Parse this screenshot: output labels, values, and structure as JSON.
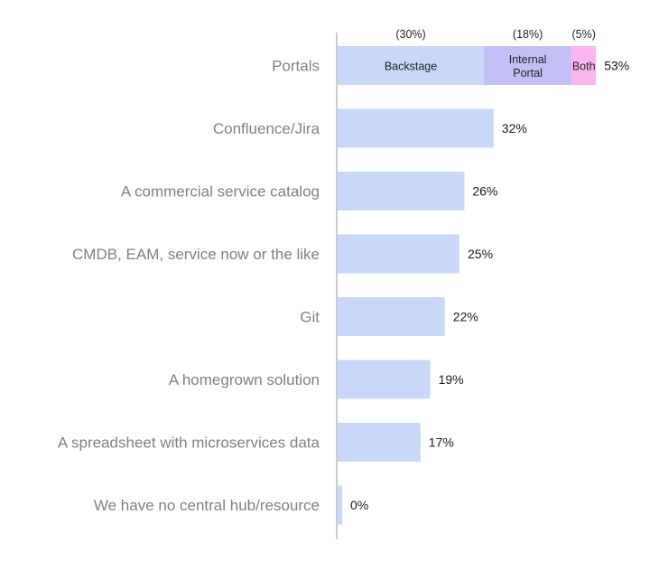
{
  "chart_data": {
    "type": "bar",
    "orientation": "horizontal",
    "categories": [
      "Portals",
      "Confluence/Jira",
      "A commercial service catalog",
      "CMDB, EAM, service now or the like",
      "Git",
      "A homegrown solution",
      "A spreadsheet with microservices data",
      "We have no central hub/resource"
    ],
    "values": [
      53,
      32,
      26,
      25,
      22,
      19,
      17,
      0
    ],
    "value_labels": [
      "53%",
      "32%",
      "26%",
      "25%",
      "22%",
      "19%",
      "17%",
      "0%"
    ],
    "xlim": [
      0,
      100
    ],
    "grid": false,
    "stacked_first_bar": {
      "segments": [
        {
          "name": "Backstage",
          "value": 30,
          "label": "(30%)",
          "color": "#c9d8f8"
        },
        {
          "name": "Internal Portal",
          "name_lines": [
            "Internal",
            "Portal"
          ],
          "value": 18,
          "label": "(18%)",
          "color": "#c3c0f7"
        },
        {
          "name": "Both",
          "value": 5,
          "label": "(5%)",
          "color": "#fbb5ef"
        }
      ]
    },
    "colors": {
      "bar": "#c9d8f8",
      "axis": "#9a9a9a",
      "category_text": "#808080",
      "value_text": "#1a1a1a"
    }
  }
}
